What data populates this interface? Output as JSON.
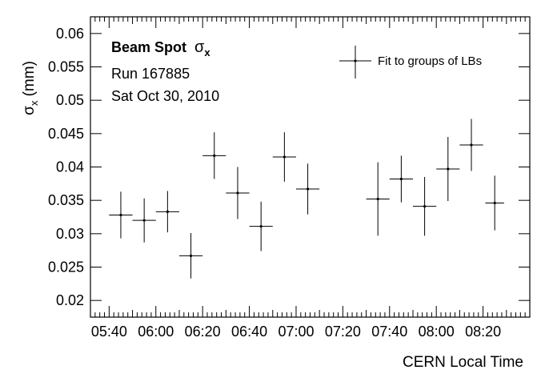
{
  "chart_data": {
    "type": "scatter",
    "xlabel": "CERN Local Time",
    "ylabel_main": "σ",
    "ylabel_sub": "x",
    "ylabel_unit": " (mm)",
    "x_range_minutes": [
      332,
      520
    ],
    "ylim": [
      0.0175,
      0.0625
    ],
    "x_ticks": [
      {
        "minute": 340,
        "label": "05:40"
      },
      {
        "minute": 360,
        "label": "06:00"
      },
      {
        "minute": 380,
        "label": "06:20"
      },
      {
        "minute": 400,
        "label": "06:40"
      },
      {
        "minute": 420,
        "label": "07:00"
      },
      {
        "minute": 440,
        "label": "07:20"
      },
      {
        "minute": 460,
        "label": "07:40"
      },
      {
        "minute": 480,
        "label": "08:00"
      },
      {
        "minute": 500,
        "label": "08:20"
      }
    ],
    "y_ticks": [
      {
        "value": 0.02,
        "label": "0.02"
      },
      {
        "value": 0.025,
        "label": "0.025"
      },
      {
        "value": 0.03,
        "label": "0.03"
      },
      {
        "value": 0.035,
        "label": "0.035"
      },
      {
        "value": 0.04,
        "label": "0.04"
      },
      {
        "value": 0.045,
        "label": "0.045"
      },
      {
        "value": 0.05,
        "label": "0.05"
      },
      {
        "value": 0.055,
        "label": "0.055"
      },
      {
        "value": 0.06,
        "label": "0.06"
      }
    ],
    "series": [
      {
        "name": "Fit to groups of LBs",
        "points": [
          {
            "x": 345,
            "xerr": 5,
            "y": 0.0328,
            "yerr": 0.0035
          },
          {
            "x": 355,
            "xerr": 5,
            "y": 0.032,
            "yerr": 0.0033
          },
          {
            "x": 365,
            "xerr": 5,
            "y": 0.0333,
            "yerr": 0.0031
          },
          {
            "x": 375,
            "xerr": 5,
            "y": 0.0267,
            "yerr": 0.0034
          },
          {
            "x": 385,
            "xerr": 5,
            "y": 0.0417,
            "yerr": 0.0035
          },
          {
            "x": 395,
            "xerr": 5,
            "y": 0.0361,
            "yerr": 0.0039
          },
          {
            "x": 405,
            "xerr": 5,
            "y": 0.0311,
            "yerr": 0.0037
          },
          {
            "x": 415,
            "xerr": 5,
            "y": 0.0415,
            "yerr": 0.0037
          },
          {
            "x": 425,
            "xerr": 5,
            "y": 0.0367,
            "yerr": 0.0038
          },
          {
            "x": 455,
            "xerr": 5,
            "y": 0.0352,
            "yerr": 0.0055
          },
          {
            "x": 465,
            "xerr": 5,
            "y": 0.0382,
            "yerr": 0.0035
          },
          {
            "x": 475,
            "xerr": 5,
            "y": 0.0341,
            "yerr": 0.0044
          },
          {
            "x": 485,
            "xerr": 5,
            "y": 0.0397,
            "yerr": 0.0048
          },
          {
            "x": 495,
            "xerr": 5,
            "y": 0.0433,
            "yerr": 0.0039
          },
          {
            "x": 505,
            "xerr": 4,
            "y": 0.0346,
            "yerr": 0.0041
          }
        ]
      }
    ],
    "annotations": {
      "title_bold": "Beam Spot",
      "title_sym": "σ",
      "title_sub": "x",
      "run": "Run 167885",
      "date": "Sat Oct 30, 2010"
    },
    "legend": {
      "label": "Fit to groups of LBs",
      "position": "top-right"
    },
    "grid": false
  }
}
